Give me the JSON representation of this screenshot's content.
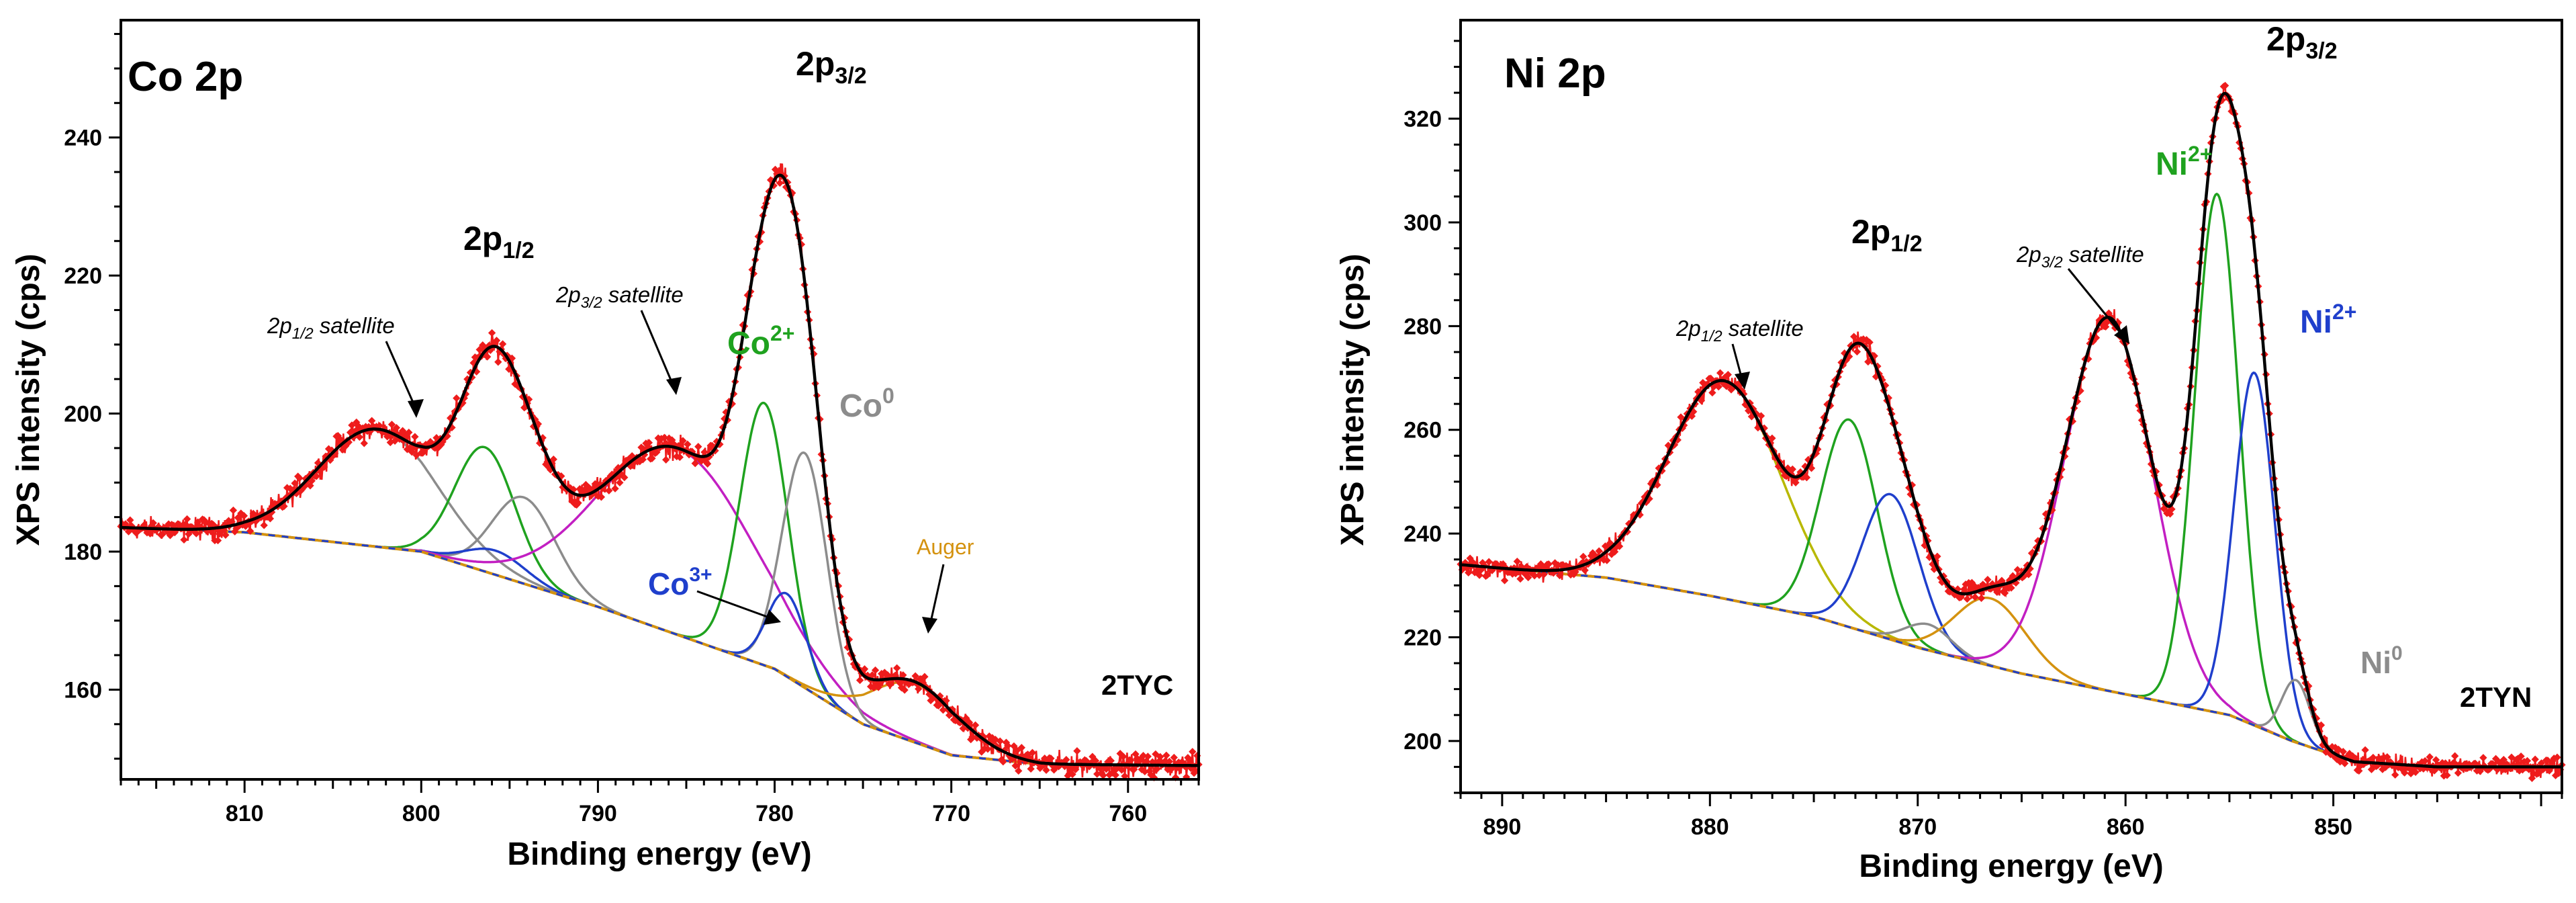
{
  "chart_data": [
    {
      "type": "line",
      "panel_title": "Co 2p",
      "sample_label": "2TYC",
      "xlabel": "Binding energy (eV)",
      "ylabel": "XPS intensity (cps)",
      "xlim": [
        817,
        756
      ],
      "ylim": [
        147,
        257
      ],
      "x_ticks": [
        810,
        800,
        790,
        780,
        770,
        760
      ],
      "y_ticks": [
        160,
        180,
        200,
        220,
        240
      ],
      "background": [
        [
          817,
          183.5
        ],
        [
          810,
          182.8
        ],
        [
          800,
          180
        ],
        [
          790,
          172
        ],
        [
          780,
          163
        ],
        [
          775,
          155
        ],
        [
          770,
          150.5
        ],
        [
          765,
          149.2
        ],
        [
          756,
          149
        ]
      ],
      "components": [
        {
          "name": "2p1/2 satellite",
          "color": "#8c8c8c",
          "center": 802.5,
          "height": 17,
          "fwhm": 8.0
        },
        {
          "name": "2p1/2 Co2+",
          "color": "#1fa21f",
          "center": 796.4,
          "height": 18,
          "fwhm": 4.0
        },
        {
          "name": "2p1/2 Co0",
          "color": "#8c8c8c",
          "center": 794.2,
          "height": 12.5,
          "fwhm": 4.2
        },
        {
          "name": "2p1/2 Co3+",
          "color": "#1f3fcc",
          "center": 795.8,
          "height": 3.5,
          "fwhm": 4.0
        },
        {
          "name": "2p3/2 satellite",
          "color": "#c21fc2",
          "center": 785.5,
          "height": 27,
          "fwhm": 10.5
        },
        {
          "name": "Co2+",
          "color": "#1fa21f",
          "center": 780.6,
          "height": 38,
          "fwhm": 3.2
        },
        {
          "name": "Co0",
          "color": "#8c8c8c",
          "center": 778.3,
          "height": 34,
          "fwhm": 3.0
        },
        {
          "name": "Co3+",
          "color": "#1f3fcc",
          "center": 779.3,
          "height": 12,
          "fwhm": 2.6
        },
        {
          "name": "Auger",
          "color": "#d4920f",
          "center": 772.0,
          "height": 8.5,
          "fwhm": 6.0
        }
      ],
      "annotations": {
        "peak_main": "2p3/2",
        "peak_second": "2p1/2",
        "sat_12": "2p1/2 satellite",
        "sat_32": "2p3/2 satellite",
        "co2": "Co2+",
        "co0": "Co0",
        "co3": "Co3+",
        "auger": "Auger"
      }
    },
    {
      "type": "line",
      "panel_title": "Ni 2p",
      "sample_label": "2TYN",
      "xlabel": "Binding energy (eV)",
      "ylabel": "XPS intensity (cps)",
      "xlim": [
        892,
        839
      ],
      "ylim": [
        190,
        339
      ],
      "x_ticks": [
        890,
        880,
        870,
        860,
        850
      ],
      "y_ticks": [
        200,
        220,
        240,
        260,
        280,
        300,
        320
      ],
      "background": [
        [
          892,
          234
        ],
        [
          885,
          231.5
        ],
        [
          880,
          228
        ],
        [
          875,
          224
        ],
        [
          870,
          218
        ],
        [
          865,
          213
        ],
        [
          860,
          209
        ],
        [
          855,
          205
        ],
        [
          852,
          200
        ],
        [
          849,
          196
        ],
        [
          845,
          195
        ],
        [
          839,
          195
        ]
      ],
      "components": [
        {
          "name": "2p1/2 satellite",
          "color": "#b8b800",
          "center": 879.3,
          "height": 42,
          "fwhm": 6.5
        },
        {
          "name": "2p1/2 Ni2+ (a)",
          "color": "#1fa21f",
          "center": 873.3,
          "height": 40,
          "fwhm": 3.2
        },
        {
          "name": "2p1/2 Ni2+ (b)",
          "color": "#1f3fcc",
          "center": 871.3,
          "height": 28,
          "fwhm": 3.2
        },
        {
          "name": "2p1/2 Ni0",
          "color": "#8c8c8c",
          "center": 869.5,
          "height": 5,
          "fwhm": 2.6
        },
        {
          "name": "orange component",
          "color": "#d4920f",
          "center": 866.5,
          "height": 13,
          "fwhm": 4.0
        },
        {
          "name": "2p3/2 satellite",
          "color": "#c21fc2",
          "center": 860.8,
          "height": 72,
          "fwhm": 5.0
        },
        {
          "name": "Ni2+ (green)",
          "color": "#1fa21f",
          "center": 855.6,
          "height": 100,
          "fwhm": 2.5
        },
        {
          "name": "Ni2+ (blue)",
          "color": "#1f3fcc",
          "center": 853.8,
          "height": 68,
          "fwhm": 2.3
        },
        {
          "name": "Ni0",
          "color": "#8c8c8c",
          "center": 851.8,
          "height": 12,
          "fwhm": 1.6
        }
      ],
      "annotations": {
        "peak_main": "2p3/2",
        "peak_second": "2p1/2",
        "sat_12": "2p1/2 satellite",
        "sat_32": "2p3/2 satellite",
        "ni2_green": "Ni2+",
        "ni2_blue": "Ni2+",
        "ni0": "Ni0"
      }
    }
  ],
  "colors": {
    "data_points": "#ee1c1c",
    "envelope": "#000000",
    "axis": "#000000",
    "background_line": "#d4920f"
  },
  "text": {
    "co": {
      "title": "Co 2p",
      "sample": "2TYC",
      "xlabel": "Binding energy (eV)",
      "ylabel": "XPS intensity (cps)",
      "p32_main": "2p",
      "p32_sub": "3/2",
      "p12_main": "2p",
      "p12_sub": "1/2",
      "sat12_main": "2p",
      "sat12_sub": "1/2",
      "sat_word": " satellite",
      "sat32_main": "2p",
      "sat32_sub": "3/2",
      "co2_main": "Co",
      "co2_sup": "2+",
      "co0_main": "Co",
      "co0_sup": "0",
      "co3_main": "Co",
      "co3_sup": "3+",
      "auger": "Auger"
    },
    "ni": {
      "title": "Ni 2p",
      "sample": "2TYN",
      "xlabel": "Binding energy (eV)",
      "ylabel": "XPS intensity (cps)",
      "p32_main": "2p",
      "p32_sub": "3/2",
      "p12_main": "2p",
      "p12_sub": "1/2",
      "sat12_main": "2p",
      "sat12_sub": "1/2",
      "sat_word": " satellite",
      "sat32_main": "2p",
      "sat32_sub": "3/2",
      "ni2g_main": "Ni",
      "ni2g_sup": "2+",
      "ni2b_main": "Ni",
      "ni2b_sup": "2+",
      "ni0_main": "Ni",
      "ni0_sup": "0"
    }
  }
}
